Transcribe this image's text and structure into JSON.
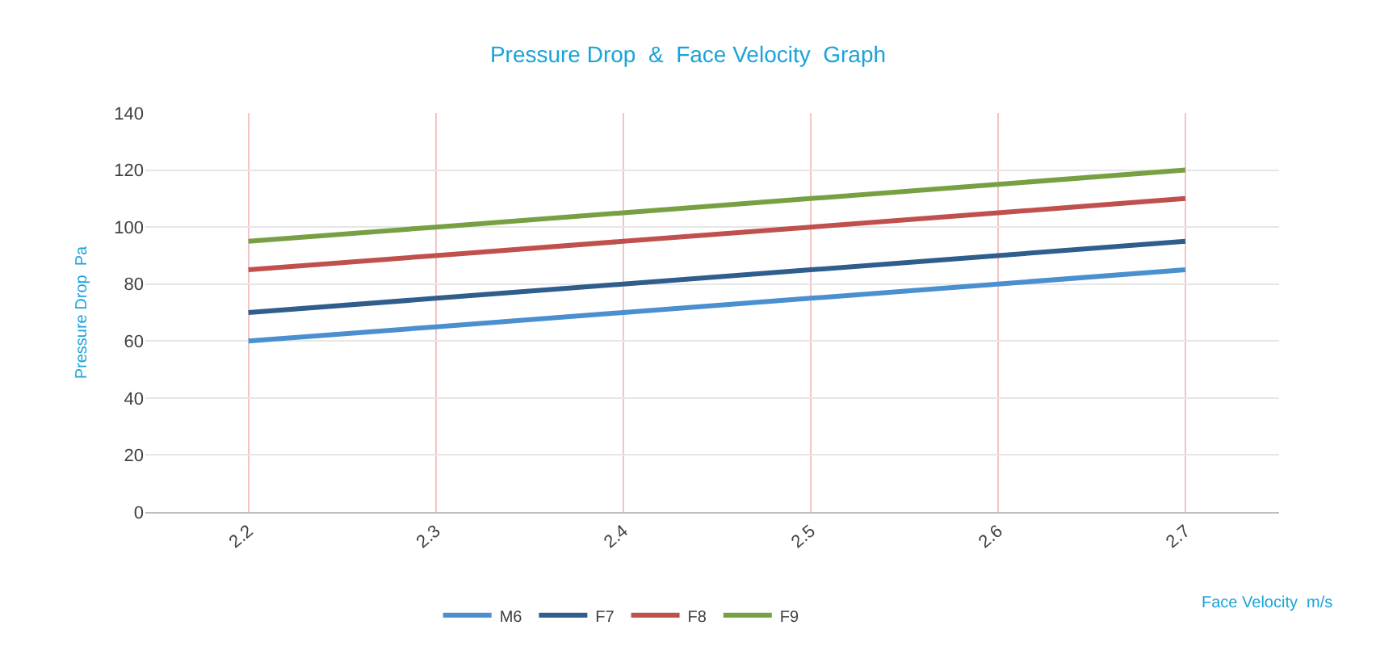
{
  "chart_data": {
    "type": "line",
    "title": "Pressure Drop  &  Face Velocity  Graph",
    "xlabel": "Face Velocity  m/s",
    "ylabel": "Pressure Drop  Pa",
    "categories": [
      "2.2",
      "2.3",
      "2.4",
      "2.5",
      "2.6",
      "2.7"
    ],
    "series": [
      {
        "name": "M6",
        "color": "#4a8fd0",
        "values": [
          60,
          65,
          70,
          75,
          80,
          85
        ]
      },
      {
        "name": "F7",
        "color": "#2f5d8c",
        "values": [
          70,
          75,
          80,
          85,
          90,
          95
        ]
      },
      {
        "name": "F8",
        "color": "#c0504d",
        "values": [
          85,
          90,
          95,
          100,
          105,
          110
        ]
      },
      {
        "name": "F9",
        "color": "#77a043",
        "values": [
          95,
          100,
          105,
          110,
          115,
          120
        ]
      }
    ],
    "ylim": [
      0,
      140
    ],
    "yticks": [
      0,
      20,
      40,
      60,
      80,
      100,
      120,
      140
    ],
    "grid": true,
    "legend": "bottom",
    "marker": "none",
    "line_style": "solid"
  }
}
